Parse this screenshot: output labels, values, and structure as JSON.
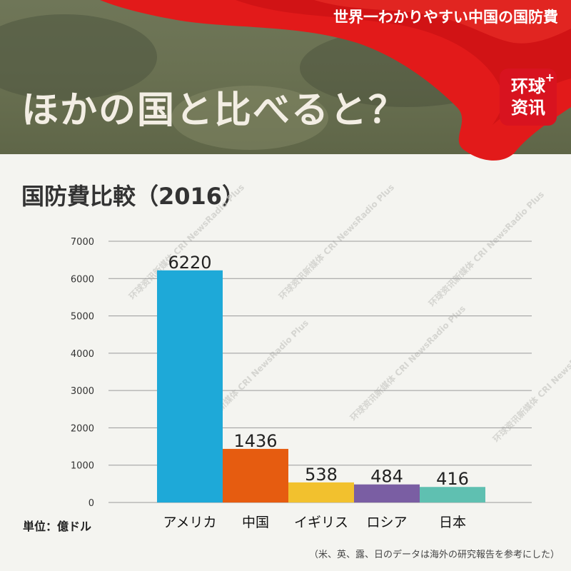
{
  "header": {
    "series_title": "世界一わかりやすい中国の国防費",
    "page_title": "ほかの国と比べると？",
    "logo_text_top": "环球",
    "logo_text_bottom": "资讯",
    "logo_plus": "+"
  },
  "colors": {
    "header_bg": "#6a7152",
    "flag_red": "#e21a1a",
    "logo_red": "#d8131f"
  },
  "watermark_text": "环球资讯新媒体 CRI NewsRadio Plus",
  "chart_data": {
    "type": "bar",
    "title": "国防費比較（2016）",
    "categories": [
      "アメリカ",
      "中国",
      "イギリス",
      "ロシア",
      "日本"
    ],
    "values": [
      6220,
      1436,
      538,
      484,
      416
    ],
    "data_labels": [
      "6220",
      "1436",
      "538",
      "484",
      "416"
    ],
    "colors": [
      "#1ea9d8",
      "#e65c10",
      "#f2c12e",
      "#7a5ea3",
      "#5fc0b1"
    ],
    "ylim": [
      0,
      7000
    ],
    "yticks": [
      0,
      1000,
      2000,
      3000,
      4000,
      5000,
      6000,
      7000
    ],
    "ytick_labels": [
      "0",
      "1000",
      "2000",
      "3000",
      "4000",
      "5000",
      "6000",
      "7000"
    ],
    "grid": true,
    "unit_label": "単位：億ドル",
    "source_note": "（米、英、露、日のデータは海外の研究報告を参考にした）"
  }
}
